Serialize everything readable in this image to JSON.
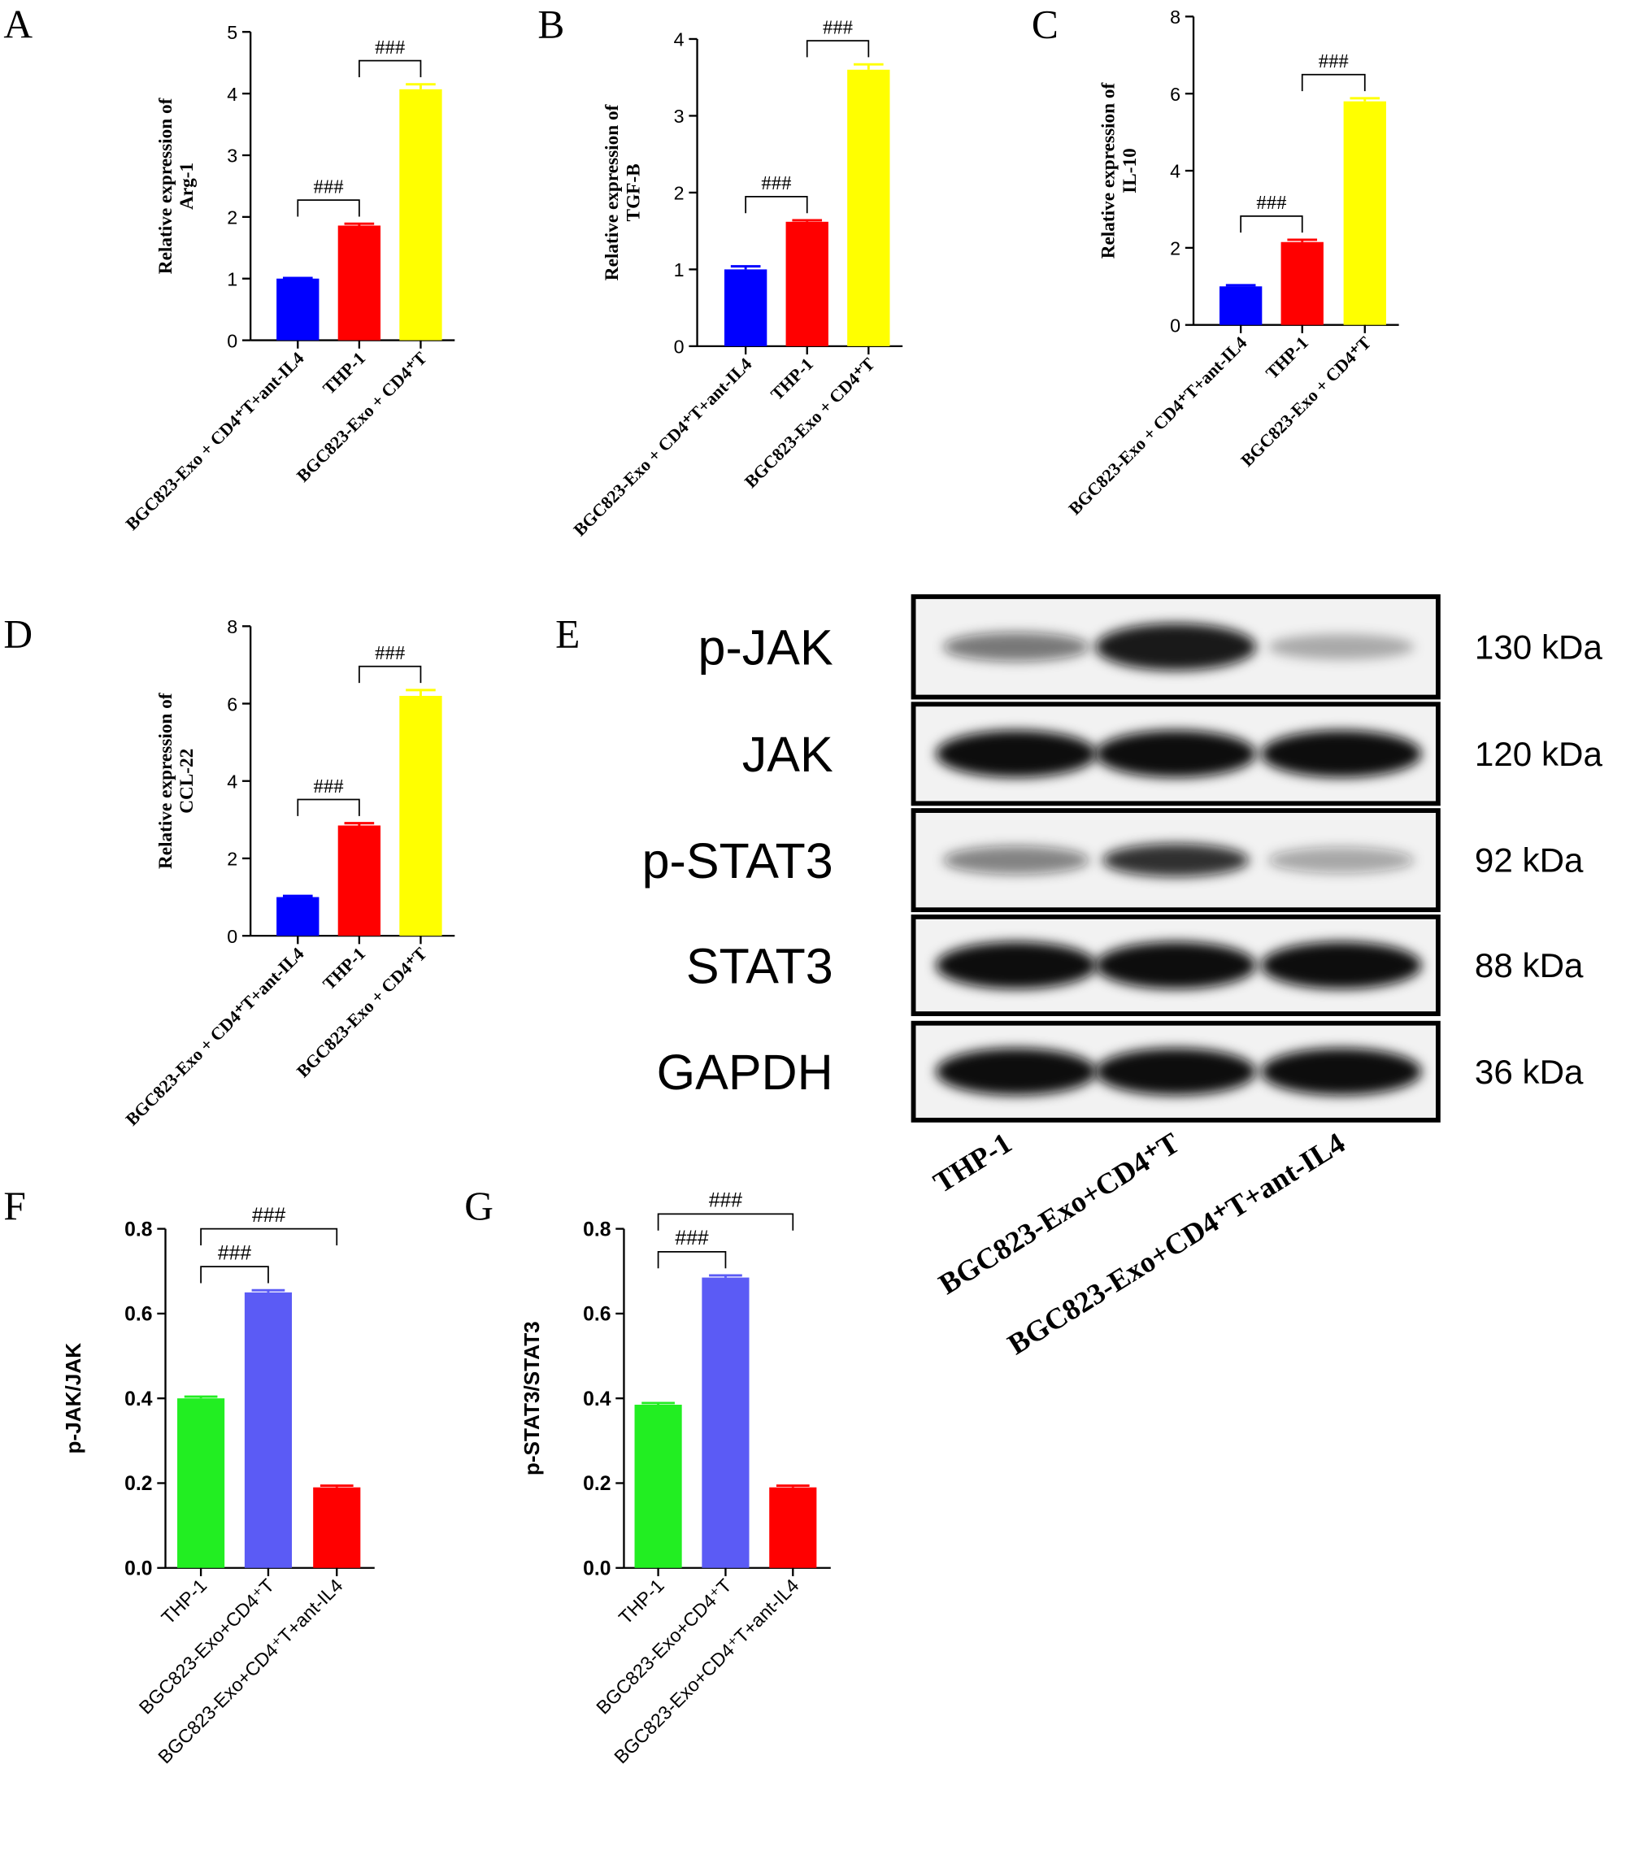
{
  "chart_data": [
    {
      "type": "bar",
      "panel_label": "A",
      "y_label": [
        "Relative expression of",
        "Arg-1"
      ],
      "categories": [
        "BGC823-Exo + CD4⁺T+ant-IL4",
        "THP-1",
        "BGC823-Exo + CD4⁺T"
      ],
      "values": [
        1.0,
        1.86,
        4.07
      ],
      "errors": [
        0.01,
        0.03,
        0.08
      ],
      "colors": [
        "#0000ff",
        "#ff0000",
        "#ffff00"
      ],
      "ylim": [
        0,
        5
      ],
      "yticks": [
        0,
        1,
        2,
        3,
        4,
        5
      ],
      "annotations": [
        {
          "text": "###",
          "from": 0,
          "to": 1
        },
        {
          "text": "###",
          "from": 1,
          "to": 2
        }
      ]
    },
    {
      "type": "bar",
      "panel_label": "B",
      "y_label": [
        "Relative expression of",
        "TGF-B"
      ],
      "categories": [
        "BGC823-Exo + CD4⁺T+ant-IL4",
        "THP-1",
        "BGC823-Exo + CD4⁺T"
      ],
      "values": [
        1.0,
        1.62,
        3.6
      ],
      "errors": [
        0.04,
        0.02,
        0.07
      ],
      "colors": [
        "#0000ff",
        "#ff0000",
        "#ffff00"
      ],
      "ylim": [
        0,
        4
      ],
      "yticks": [
        0,
        1,
        2,
        3,
        4
      ],
      "annotations": [
        {
          "text": "###",
          "from": 0,
          "to": 1
        },
        {
          "text": "###",
          "from": 1,
          "to": 2
        }
      ]
    },
    {
      "type": "bar",
      "panel_label": "C",
      "y_label": [
        "Relative expression of",
        "IL-10"
      ],
      "categories": [
        "BGC823-Exo + CD4⁺T+ant-IL4",
        "THP-1",
        "BGC823-Exo + CD4⁺T"
      ],
      "values": [
        1.0,
        2.15,
        5.8
      ],
      "errors": [
        0.03,
        0.06,
        0.08
      ],
      "colors": [
        "#0000ff",
        "#ff0000",
        "#ffff00"
      ],
      "ylim": [
        0,
        8
      ],
      "yticks": [
        0,
        2,
        4,
        6,
        8
      ],
      "annotations": [
        {
          "text": "###",
          "from": 0,
          "to": 1
        },
        {
          "text": "###",
          "from": 1,
          "to": 2
        }
      ]
    },
    {
      "type": "bar",
      "panel_label": "D",
      "y_label": [
        "Relative expression of",
        "CCL-22"
      ],
      "categories": [
        "BGC823-Exo + CD4⁺T+ant-IL4",
        "THP-1",
        "BGC823-Exo + CD4⁺T"
      ],
      "values": [
        1.0,
        2.85,
        6.2
      ],
      "errors": [
        0.03,
        0.06,
        0.15
      ],
      "colors": [
        "#0000ff",
        "#ff0000",
        "#ffff00"
      ],
      "ylim": [
        0,
        8
      ],
      "yticks": [
        0,
        2,
        4,
        6,
        8
      ],
      "annotations": [
        {
          "text": "###",
          "from": 0,
          "to": 1
        },
        {
          "text": "###",
          "from": 1,
          "to": 2
        }
      ]
    },
    {
      "type": "bar",
      "panel_label": "F",
      "y_label": [
        "p-JAK/JAK"
      ],
      "categories": [
        "THP-1",
        "BGC823-Exo+CD4⁺T",
        "BGC823-Exo+CD4⁺T+ant-IL4"
      ],
      "values": [
        0.4,
        0.65,
        0.19
      ],
      "errors": [
        0.004,
        0.005,
        0.004
      ],
      "colors": [
        "#22ee22",
        "#5b5bf5",
        "#ff0000"
      ],
      "ylim": [
        0,
        0.8
      ],
      "yticks": [
        {
          "value": 0,
          "label": "0.0"
        },
        0.2,
        0.4,
        0.6,
        0.8
      ],
      "annotations": [
        {
          "text": "###",
          "from": 0,
          "to": 1
        },
        {
          "text": "###",
          "from": 0,
          "to": 2
        }
      ]
    },
    {
      "type": "bar",
      "panel_label": "G",
      "y_label": [
        "p-STAT3/STAT3"
      ],
      "categories": [
        "THP-1",
        "BGC823-Exo+CD4⁺T",
        "BGC823-Exo+CD4⁺T+ant-IL4"
      ],
      "values": [
        0.385,
        0.685,
        0.19
      ],
      "errors": [
        0.004,
        0.005,
        0.004
      ],
      "colors": [
        "#22ee22",
        "#5b5bf5",
        "#ff0000"
      ],
      "ylim": [
        0,
        0.8
      ],
      "yticks": [
        {
          "value": 0,
          "label": "0.0"
        },
        0.2,
        0.4,
        0.6,
        0.8
      ],
      "annotations": [
        {
          "text": "###",
          "from": 0,
          "to": 1
        },
        {
          "text": "###",
          "from": 0,
          "to": 2
        }
      ]
    }
  ],
  "blot": {
    "panel_label": "E",
    "rows": [
      {
        "protein": "p-JAK",
        "weight": "130 kDa"
      },
      {
        "protein": "JAK",
        "weight": "120 kDa"
      },
      {
        "protein": "p-STAT3",
        "weight": "92 kDa"
      },
      {
        "protein": "STAT3",
        "weight": "88 kDa"
      },
      {
        "protein": "GAPDH",
        "weight": "36 kDa"
      }
    ],
    "lanes": [
      "THP-1",
      "BGC823-Exo+CD4⁺T",
      "BGC823-Exo+CD4⁺T+ant-IL4"
    ]
  }
}
